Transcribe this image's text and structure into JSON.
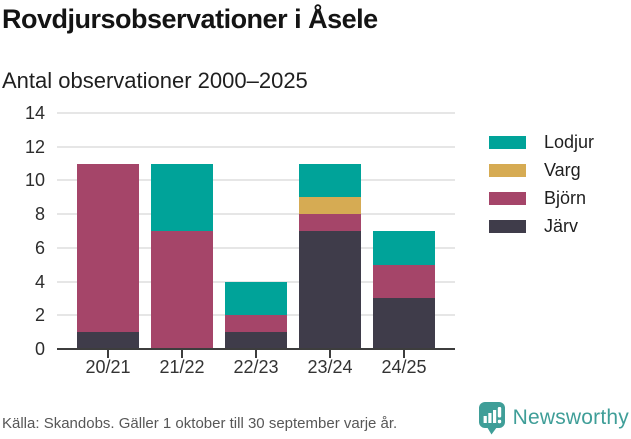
{
  "source_note": "Källa: Skandobs. Gäller 1 oktober till 30 september varje år.",
  "branding": {
    "wordmark": "Newsworthy",
    "color": "#3f9e98",
    "icon": "bar-chart-speech-bubble-icon"
  },
  "chart_data": {
    "type": "bar",
    "stacked": true,
    "title": "Rovdjursobservationer i Åsele",
    "subtitle": "Antal observationer 2000–2025",
    "xlabel": "",
    "ylabel": "",
    "categories": [
      "20/21",
      "21/22",
      "22/23",
      "23/24",
      "24/25"
    ],
    "series": [
      {
        "name": "Järv",
        "key": "jarv",
        "color": "#3f3c4a",
        "values": [
          1,
          0,
          1,
          7,
          3
        ]
      },
      {
        "name": "Björn",
        "key": "bjorn",
        "color": "#a54569",
        "values": [
          10,
          7,
          1,
          1,
          2
        ]
      },
      {
        "name": "Varg",
        "key": "varg",
        "color": "#d6ab53",
        "values": [
          0,
          0,
          0,
          1,
          0
        ]
      },
      {
        "name": "Lodjur",
        "key": "lodjur",
        "color": "#00a399",
        "values": [
          0,
          4,
          2,
          2,
          2
        ]
      }
    ],
    "stack_order_bottom_to_top": [
      "Järv",
      "Björn",
      "Varg",
      "Lodjur"
    ],
    "totals": [
      11,
      11,
      4,
      11,
      7
    ],
    "legend_order": [
      "Lodjur",
      "Varg",
      "Björn",
      "Järv"
    ],
    "legend_position": "right",
    "yticks": [
      0,
      2,
      4,
      6,
      8,
      10,
      12,
      14
    ],
    "ylim": [
      0,
      14
    ],
    "grid": true
  }
}
